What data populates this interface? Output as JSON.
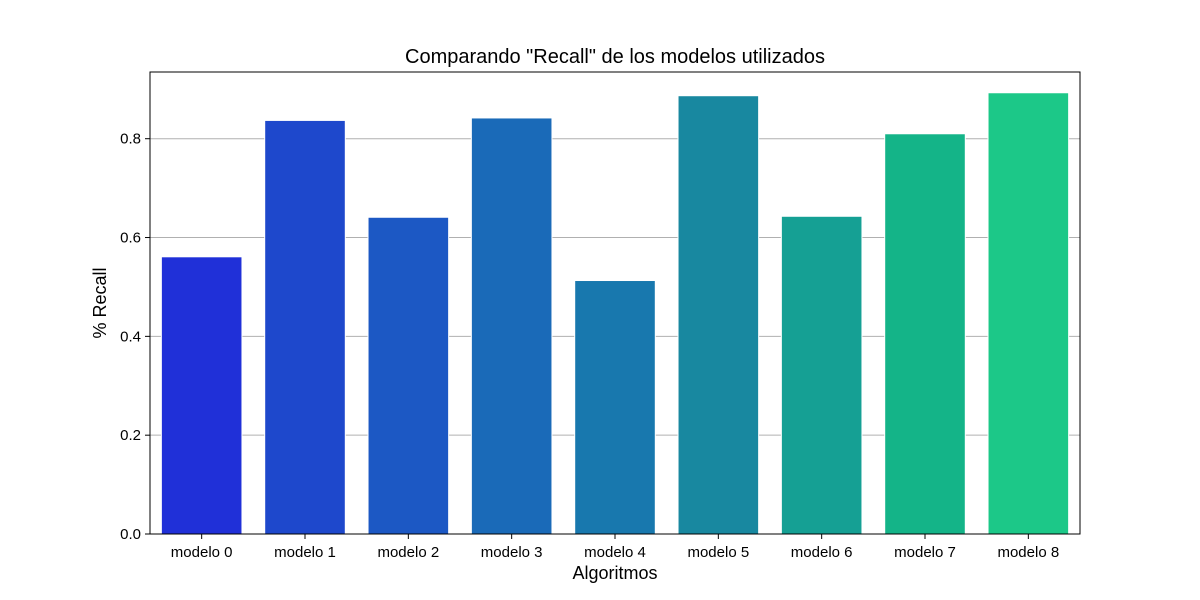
{
  "chart_data": {
    "type": "bar",
    "title": "Comparando \"Recall\" de los modelos utilizados",
    "xlabel": "Algoritmos",
    "ylabel": "% Recall",
    "categories": [
      "modelo 0",
      "modelo 1",
      "modelo 2",
      "modelo 3",
      "modelo 4",
      "modelo 5",
      "modelo 6",
      "modelo 7",
      "modelo 8"
    ],
    "values": [
      0.561,
      0.837,
      0.641,
      0.842,
      0.513,
      0.887,
      0.643,
      0.81,
      0.893
    ],
    "colors": [
      "#2030d8",
      "#1e48cc",
      "#1c58c4",
      "#1a6ab8",
      "#1878ae",
      "#1888a0",
      "#15a094",
      "#14b488",
      "#1cc888"
    ],
    "ylim": [
      0,
      0.935
    ],
    "yticks": [
      0.0,
      0.2,
      0.4,
      0.6,
      0.8
    ],
    "ytick_labels": [
      "0.0",
      "0.2",
      "0.4",
      "0.6",
      "0.8"
    ],
    "grid": "y-major",
    "legend": "none"
  }
}
